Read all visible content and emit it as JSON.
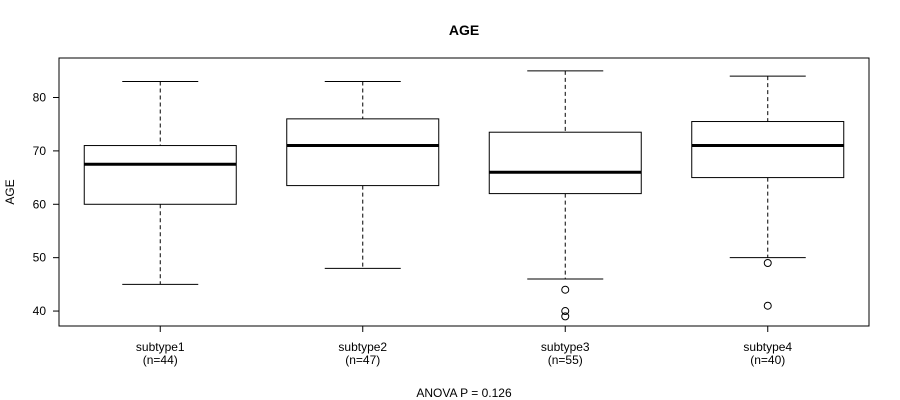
{
  "chart_data": {
    "type": "box",
    "title": "AGE",
    "ylabel": "AGE",
    "xlabel": "",
    "footnote": "ANOVA P = 0.126",
    "ylim": [
      37.2,
      87.4
    ],
    "yticks": [
      40,
      50,
      60,
      70,
      80
    ],
    "grid": false,
    "legend": "none",
    "categories": [
      "subtype1",
      "subtype2",
      "subtype3",
      "subtype4"
    ],
    "counts": [
      "(n=44)",
      "(n=47)",
      "(n=55)",
      "(n=40)"
    ],
    "boxes": [
      {
        "name": "subtype1",
        "whisker_low": 45,
        "q1": 60,
        "median": 67.5,
        "q3": 71,
        "whisker_high": 83,
        "outliers": []
      },
      {
        "name": "subtype2",
        "whisker_low": 48,
        "q1": 63.5,
        "median": 71,
        "q3": 76,
        "whisker_high": 83,
        "outliers": []
      },
      {
        "name": "subtype3",
        "whisker_low": 46,
        "q1": 62,
        "median": 66,
        "q3": 73.5,
        "whisker_high": 85,
        "outliers": [
          44,
          40,
          39
        ]
      },
      {
        "name": "subtype4",
        "whisker_low": 50,
        "q1": 65,
        "median": 71,
        "q3": 75.5,
        "whisker_high": 84,
        "outliers": [
          49,
          41
        ]
      }
    ]
  }
}
